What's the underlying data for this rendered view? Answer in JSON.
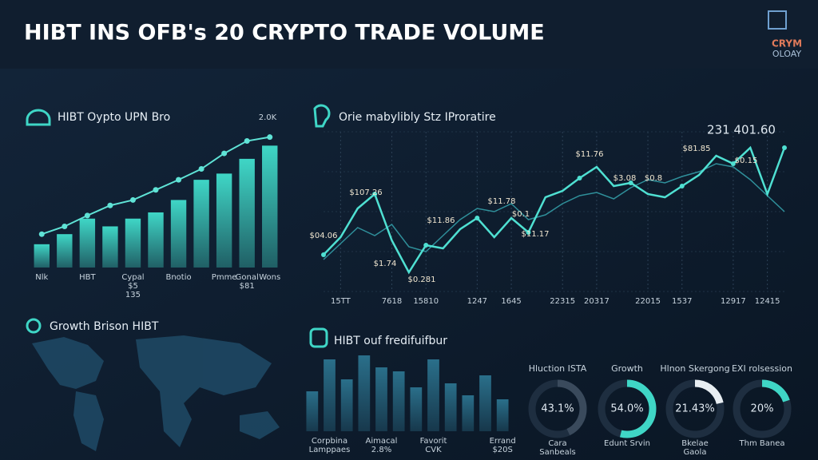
{
  "header": {
    "title": "HIBT INS OFB's 20 CRYPTO TRADE VOLUME",
    "logo": [
      "CRYM",
      "OLOAY"
    ]
  },
  "chart_data": [
    {
      "type": "bar",
      "title": "HIBT Oypto UPN Bro",
      "annotation": "2.0K",
      "categories": [
        "Nlk",
        null,
        "HBT",
        null,
        "Cypal\n$5\n135",
        null,
        "Bnotio",
        null,
        "Pmme",
        "Gonal\n$81",
        "Wons"
      ],
      "ylim": [
        0,
        180
      ],
      "series": [
        {
          "type": "bar",
          "color": "#3fd6c6",
          "values": [
            30,
            43,
            63,
            53,
            63,
            71,
            87,
            113,
            121,
            140,
            157
          ]
        },
        {
          "type": "line",
          "color": "#5fe3d6",
          "values": [
            43,
            53,
            67,
            80,
            87,
            100,
            113,
            127,
            147,
            163,
            168
          ]
        }
      ]
    },
    {
      "type": "line",
      "title": "Orie mabylibly Stz IProratire",
      "annotation": "231 401.60",
      "x": [
        0,
        1,
        2,
        3,
        4,
        5,
        6,
        7,
        8,
        9,
        10,
        11,
        12,
        13,
        14,
        15,
        16,
        17,
        18,
        19,
        20,
        21,
        22,
        23,
        24,
        25,
        26,
        27
      ],
      "xlim": [
        0,
        27
      ],
      "xticks": [
        {
          "value": 1,
          "label": "15TT"
        },
        {
          "value": 4,
          "label": "7618"
        },
        {
          "value": 6,
          "label": "15810"
        },
        {
          "value": 9,
          "label": "1247"
        },
        {
          "value": 11,
          "label": "1645"
        },
        {
          "value": 14,
          "label": "22315"
        },
        {
          "value": 16,
          "label": "20317"
        },
        {
          "value": 19,
          "label": "22015"
        },
        {
          "value": 21,
          "label": "1537"
        },
        {
          "value": 24,
          "label": "12917"
        },
        {
          "value": 26,
          "label": "12415"
        }
      ],
      "ylim": [
        0,
        100
      ],
      "series": [
        {
          "color": "#4fe0d2",
          "values": [
            23,
            34,
            52,
            61,
            32,
            12,
            29,
            27,
            39,
            46,
            34,
            46,
            37,
            59,
            63,
            71,
            78,
            66,
            68,
            61,
            59,
            66,
            73,
            85,
            80,
            90,
            61,
            90
          ]
        },
        {
          "color": "#2f8f9a",
          "values": [
            20,
            30,
            40,
            35,
            42,
            28,
            25,
            35,
            45,
            52,
            50,
            55,
            45,
            48,
            55,
            60,
            62,
            58,
            65,
            70,
            68,
            72,
            75,
            80,
            78,
            70,
            60,
            50
          ]
        }
      ],
      "annotations": [
        "$04.06",
        "$107.26",
        "$1.74",
        "$0.281",
        "$11.86",
        "$11.78",
        "$0.1",
        "$11.17",
        "$11.76",
        "$3.08",
        "$0.8",
        "$81.85",
        "$0.15"
      ]
    },
    {
      "type": "map",
      "title": "Growth Brison HIBT"
    },
    {
      "type": "bar",
      "title": "HIBT ouf fredifuifbur",
      "categories": [
        null,
        "Corpbina\nLamppaes",
        null,
        null,
        "Aimacal\n2.8%",
        null,
        null,
        "Favorit\nCVK",
        null,
        null,
        null,
        "Errand\n$20S"
      ],
      "ylim": [
        0,
        100
      ],
      "series": [
        {
          "type": "bar",
          "color": "#2a6f8a",
          "values": [
            50,
            90,
            65,
            95,
            80,
            75,
            55,
            90,
            60,
            45,
            70,
            40
          ]
        }
      ]
    },
    {
      "type": "donut",
      "categories": [
        "Hluction ISTA",
        "Growth",
        "Hlnon Skergong",
        "EXI rolsession"
      ],
      "values": [
        43.1,
        54,
        21.43,
        20
      ],
      "value_labels": [
        "43.1%",
        "54.0%",
        "21.43%",
        "20%"
      ],
      "subtitles": [
        "Cara\nSanbeals",
        "Edunt Srvin",
        "Bkelae\nGaola",
        "Thm Banea"
      ],
      "colors": [
        "#3a4a5c",
        "#3fd6c6",
        "#e8eef2",
        "#3fd6c6"
      ]
    }
  ]
}
